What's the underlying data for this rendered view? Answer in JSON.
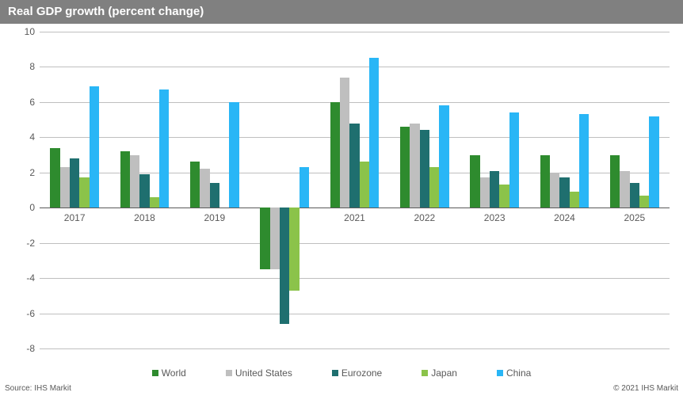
{
  "chart": {
    "title": "Real GDP growth (percent change)",
    "type": "bar",
    "title_fontsize": 15,
    "title_color": "#ffffff",
    "title_bg": "#808080",
    "background_color": "#ffffff",
    "grid_color": "#bfbfbf",
    "axis_text_color": "#595959",
    "label_fontsize": 12,
    "categories": [
      "2017",
      "2018",
      "2019",
      "2020",
      "2021",
      "2022",
      "2023",
      "2024",
      "2025"
    ],
    "series": [
      {
        "name": "World",
        "color": "#2e8b2e",
        "values": [
          3.4,
          3.2,
          2.6,
          -3.5,
          6.0,
          4.6,
          3.0,
          3.0,
          3.0
        ]
      },
      {
        "name": "United States",
        "color": "#bfbfbf",
        "values": [
          2.3,
          3.0,
          2.2,
          -3.5,
          7.4,
          4.8,
          1.7,
          2.0,
          2.1
        ]
      },
      {
        "name": "Eurozone",
        "color": "#1f6f6f",
        "values": [
          2.8,
          1.9,
          1.4,
          -6.6,
          4.8,
          4.4,
          2.1,
          1.7,
          1.4
        ]
      },
      {
        "name": "Japan",
        "color": "#8bc34a",
        "values": [
          1.7,
          0.6,
          0.0,
          -4.7,
          2.6,
          2.3,
          1.3,
          0.9,
          0.7
        ]
      },
      {
        "name": "China",
        "color": "#29b6f6",
        "values": [
          6.9,
          6.7,
          6.0,
          2.3,
          8.5,
          5.8,
          5.4,
          5.3,
          5.2
        ]
      }
    ],
    "ylim": [
      -8,
      10
    ],
    "ytick_step": 2,
    "bar_width": 0.14,
    "group_gap": 0.3,
    "source": "Source: IHS Markit",
    "copyright": "© 2021 IHS Markit"
  }
}
